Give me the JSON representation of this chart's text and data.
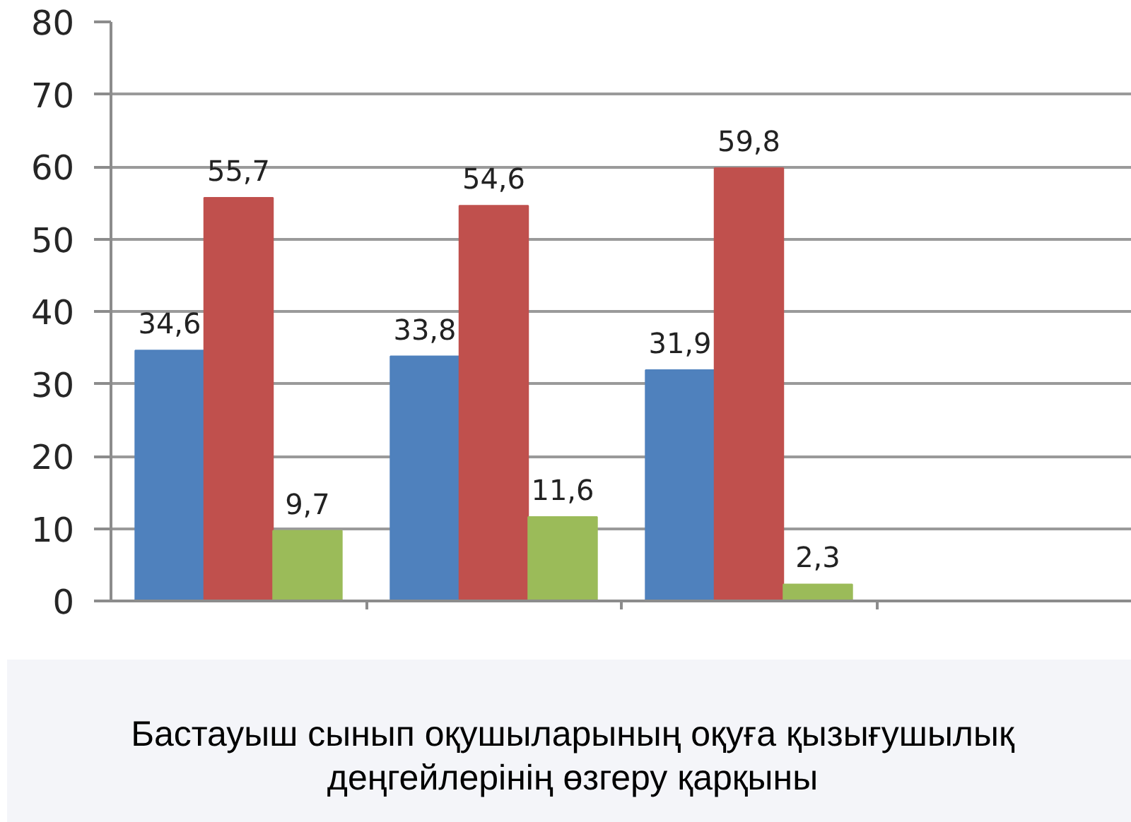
{
  "chart_data": {
    "type": "bar",
    "title": "Бастауыш сынып оқушыларының оқуға қызығушылық деңгейлерінің өзгеру қарқыны",
    "categories": [
      null,
      null,
      null,
      null
    ],
    "series": [
      {
        "color": "#4f81bd",
        "values": [
          34.6,
          33.8,
          31.9,
          null
        ],
        "value_labels": [
          "34,6",
          "33,8",
          "31,9",
          null
        ]
      },
      {
        "color": "#c0504d",
        "values": [
          55.7,
          54.6,
          59.8,
          null
        ],
        "value_labels": [
          "55,7",
          "54,6",
          "59,8",
          null
        ]
      },
      {
        "color": "#9bbb59",
        "values": [
          9.7,
          11.6,
          2.3,
          null
        ],
        "value_labels": [
          "9,7",
          "11,6",
          "2,3",
          null
        ]
      }
    ],
    "ylim": [
      0,
      80
    ],
    "yticks": [
      0,
      10,
      20,
      30,
      40,
      50,
      60,
      70,
      80
    ],
    "grid": "y",
    "tick_labels": "y"
  }
}
